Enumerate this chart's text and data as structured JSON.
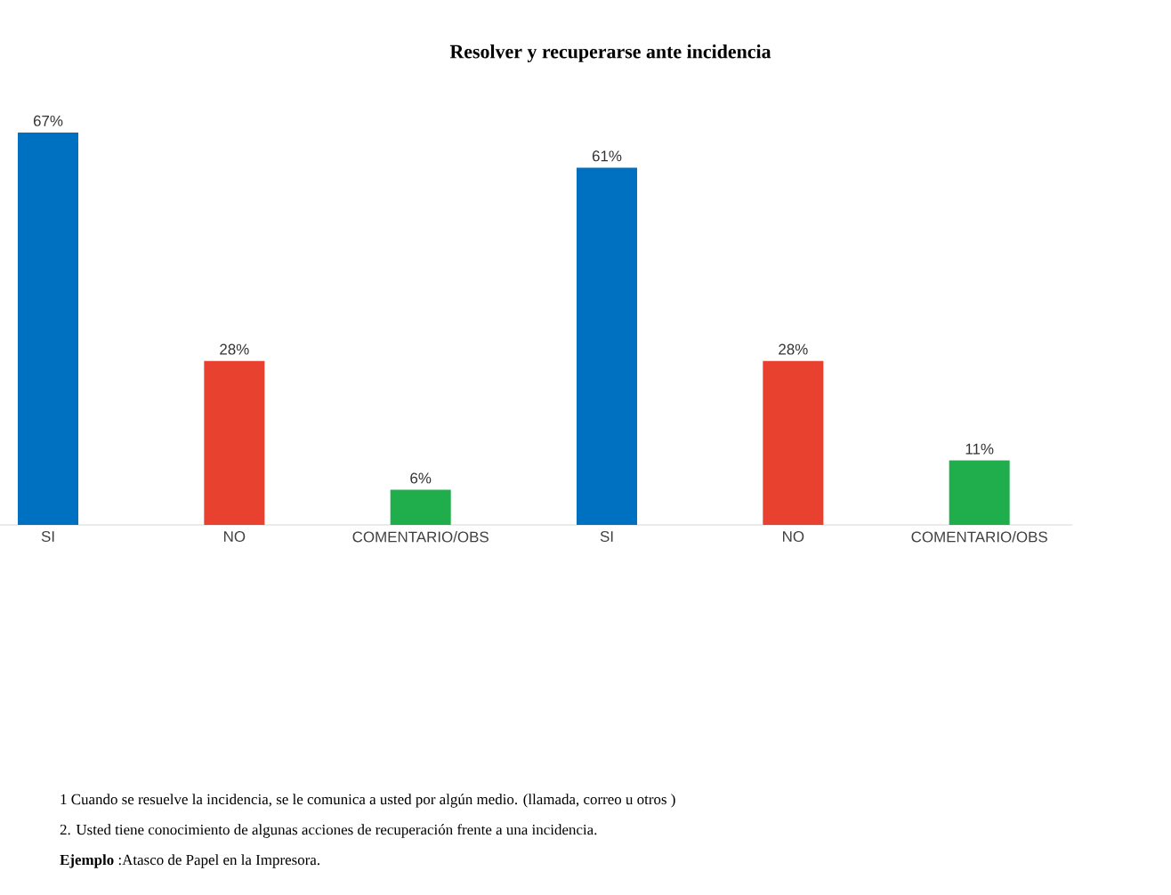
{
  "chart_data": {
    "type": "bar",
    "title": "Resolver y recuperarse ante incidencia",
    "categories": [
      "SI",
      "NO",
      "COMENTARIO/OBS",
      "SI",
      "NO",
      "COMENTARIO/OBS"
    ],
    "values": [
      67,
      28,
      6,
      61,
      28,
      11
    ],
    "colors": [
      "#0070c0",
      "#e8412f",
      "#1fae4b",
      "#0070c0",
      "#e8412f",
      "#1fae4b"
    ],
    "value_labels": [
      "67%",
      "28%",
      "6%",
      "61%",
      "28%",
      "11%"
    ],
    "annotations": [
      "1 Cuando se resuelve la incidencia, se le comunica a usted por algún medio. (llamada, correo u otros )",
      "2. Usted tiene conocimiento de algunas acciones de recuperación frente a una incidencia.",
      "**Ejemplo** :Atasco de Papel en la Impresora."
    ]
  }
}
